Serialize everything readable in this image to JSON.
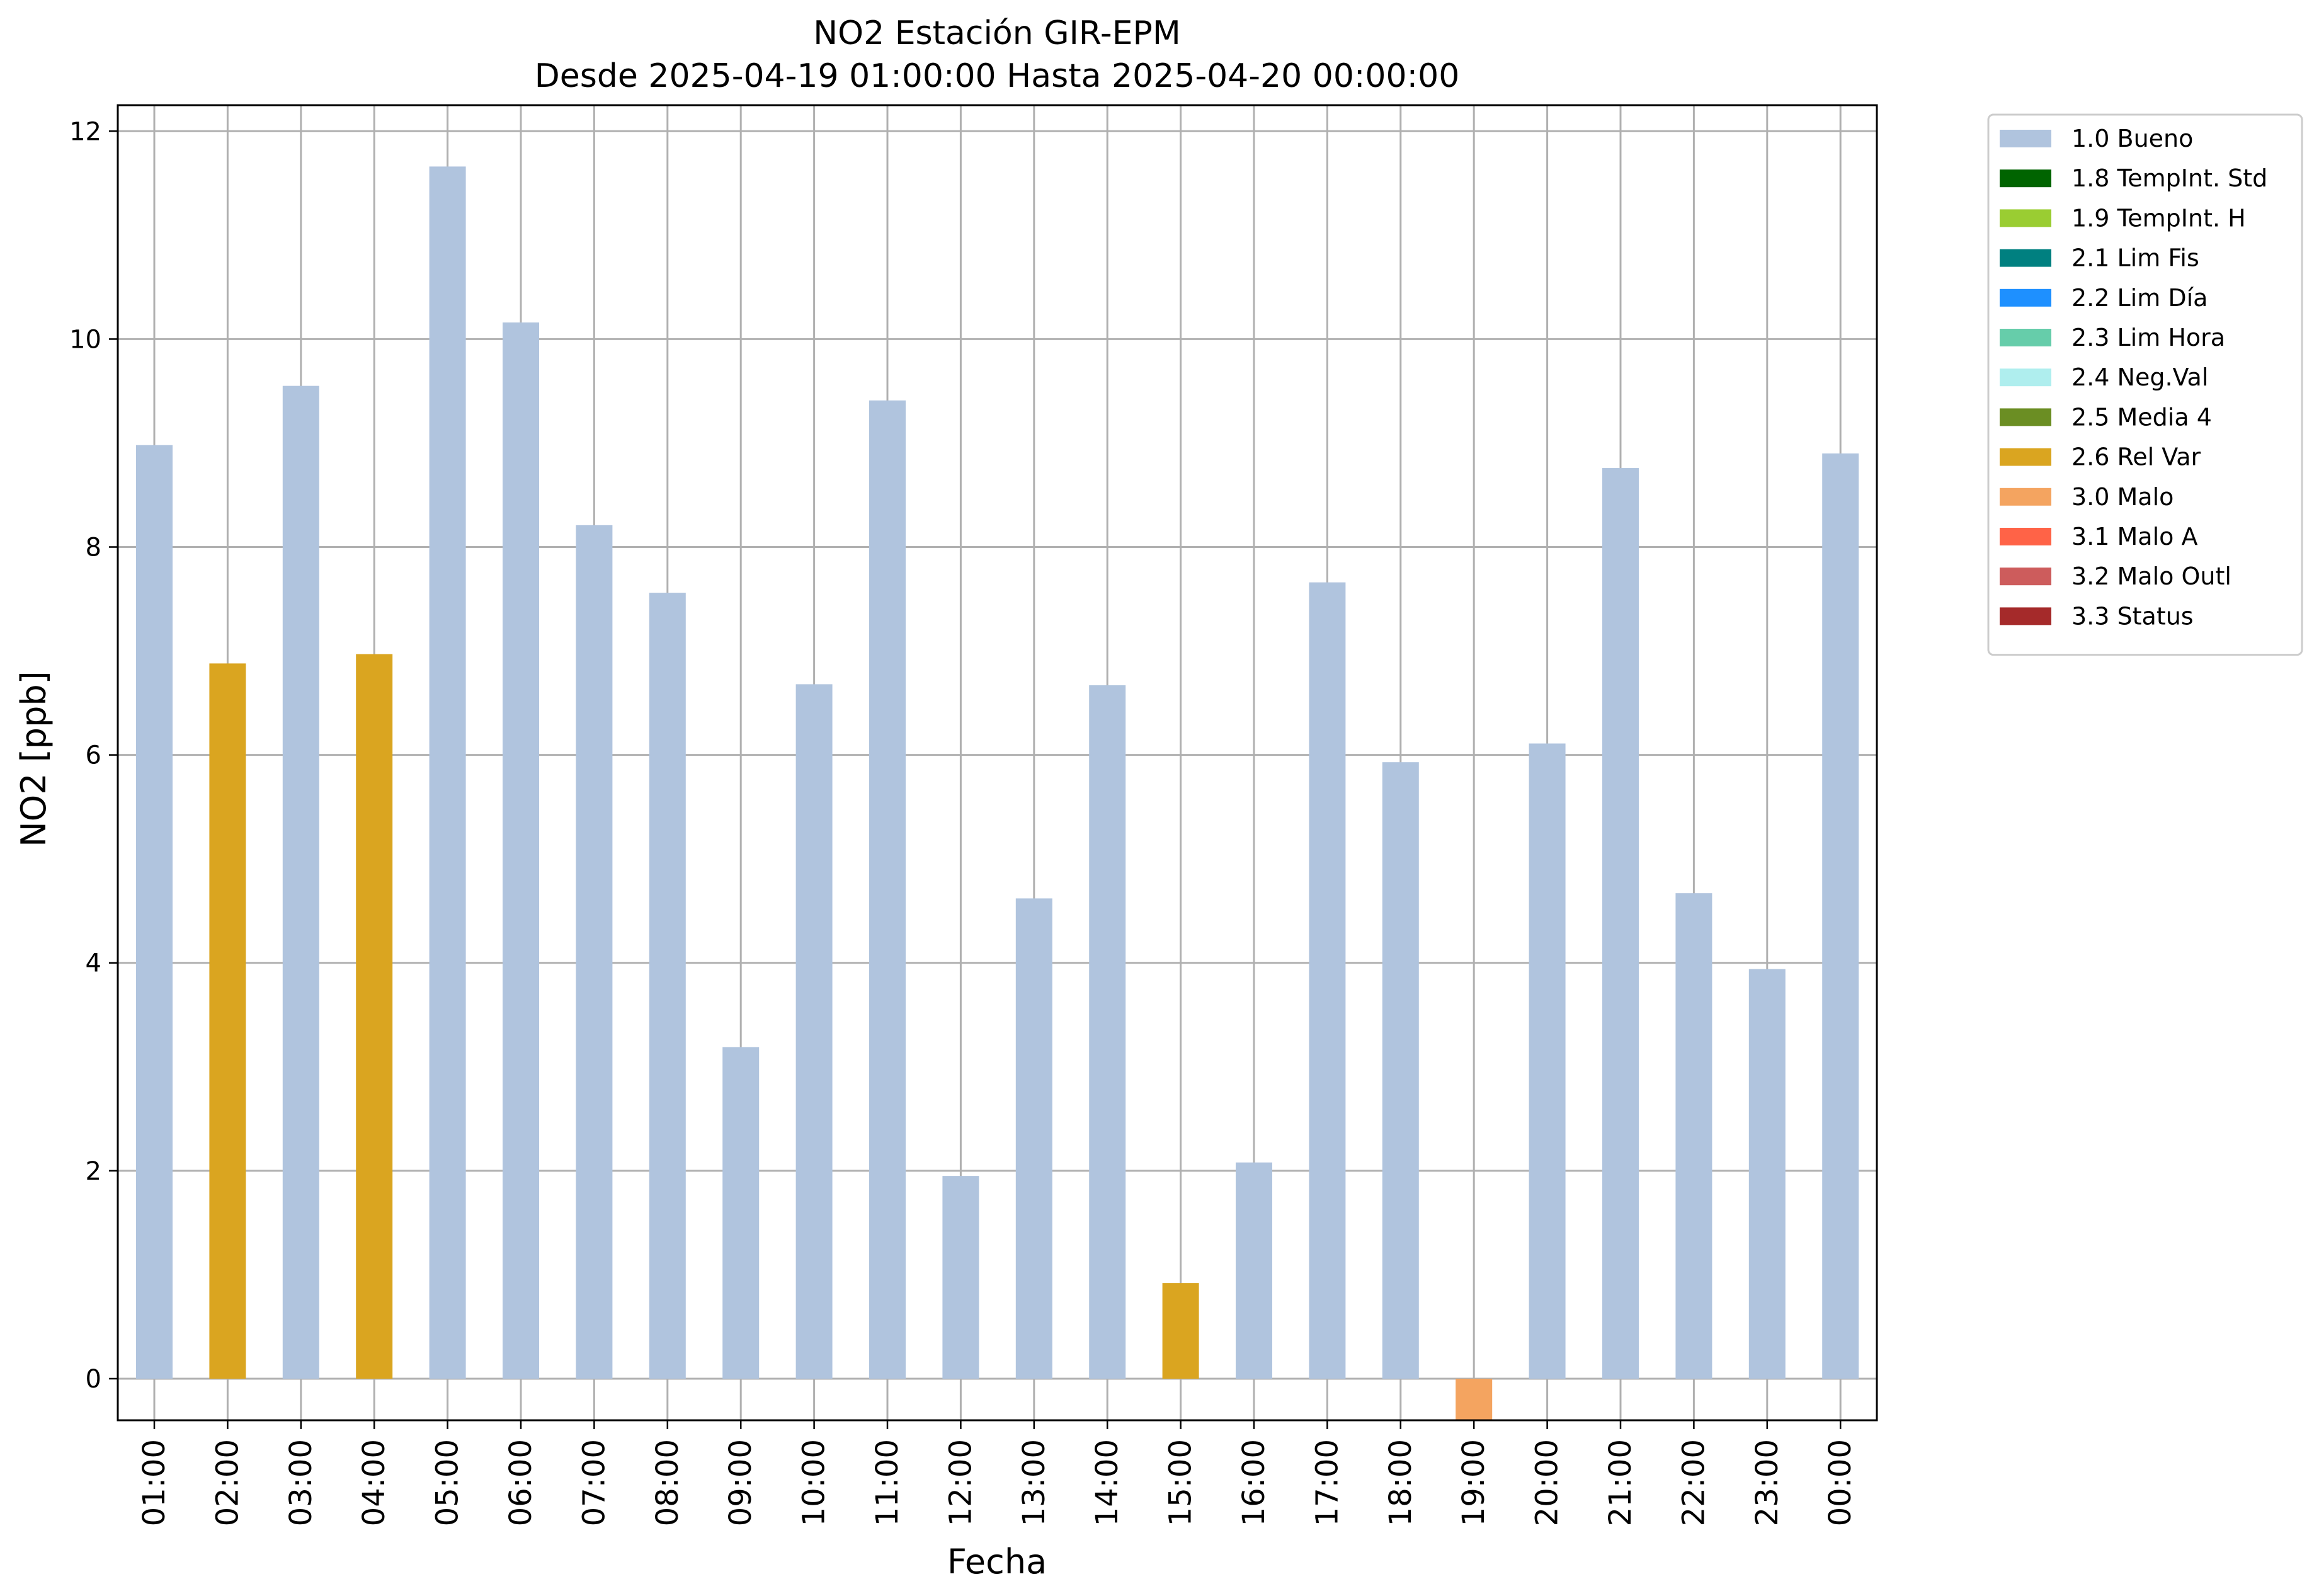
{
  "chart_data": {
    "type": "bar",
    "title": [
      "NO2 Estación GIR-EPM",
      "Desde 2025-04-19 01:00:00 Hasta 2025-04-20 00:00:00"
    ],
    "xlabel": "Fecha",
    "ylabel": "NO2 [ppb]",
    "ylim": [
      -0.4,
      12.25
    ],
    "yticks": [
      0,
      2,
      4,
      6,
      8,
      10,
      12
    ],
    "grid": true,
    "legend_position": "outside-top-right",
    "categories": [
      "01:00",
      "02:00",
      "03:00",
      "04:00",
      "05:00",
      "06:00",
      "07:00",
      "08:00",
      "09:00",
      "10:00",
      "11:00",
      "12:00",
      "13:00",
      "14:00",
      "15:00",
      "16:00",
      "17:00",
      "18:00",
      "19:00",
      "20:00",
      "21:00",
      "22:00",
      "23:00",
      "00:00"
    ],
    "values": [
      8.98,
      6.88,
      9.55,
      6.97,
      11.66,
      10.16,
      8.21,
      7.56,
      3.19,
      6.68,
      9.41,
      1.95,
      4.62,
      6.67,
      0.92,
      2.08,
      7.66,
      5.93,
      -0.4,
      6.11,
      8.76,
      4.67,
      3.94,
      8.9
    ],
    "flags": [
      "1.0 Bueno",
      "2.6 Rel Var",
      "1.0 Bueno",
      "2.6 Rel Var",
      "1.0 Bueno",
      "1.0 Bueno",
      "1.0 Bueno",
      "1.0 Bueno",
      "1.0 Bueno",
      "1.0 Bueno",
      "1.0 Bueno",
      "1.0 Bueno",
      "1.0 Bueno",
      "1.0 Bueno",
      "2.6 Rel Var",
      "1.0 Bueno",
      "1.0 Bueno",
      "1.0 Bueno",
      "3.0 Malo",
      "1.0 Bueno",
      "1.0 Bueno",
      "1.0 Bueno",
      "1.0 Bueno",
      "1.0 Bueno"
    ],
    "legend": [
      {
        "label": "1.0 Bueno",
        "color": "#b0c4de"
      },
      {
        "label": "1.8 TempInt. Std",
        "color": "#006400"
      },
      {
        "label": "1.9 TempInt. H",
        "color": "#9acd32"
      },
      {
        "label": "2.1 Lim Fis",
        "color": "#008080"
      },
      {
        "label": "2.2 Lim Día",
        "color": "#1e90ff"
      },
      {
        "label": "2.3 Lim Hora",
        "color": "#66cdaa"
      },
      {
        "label": "2.4 Neg.Val",
        "color": "#afeeee"
      },
      {
        "label": "2.5 Media 4",
        "color": "#6b8e23"
      },
      {
        "label": "2.6 Rel Var",
        "color": "#daa520"
      },
      {
        "label": "3.0 Malo",
        "color": "#f4a460"
      },
      {
        "label": "3.1 Malo A",
        "color": "#ff6347"
      },
      {
        "label": "3.2 Malo Outl",
        "color": "#cd5c5c"
      },
      {
        "label": "3.3 Status",
        "color": "#a52a2a"
      }
    ]
  }
}
